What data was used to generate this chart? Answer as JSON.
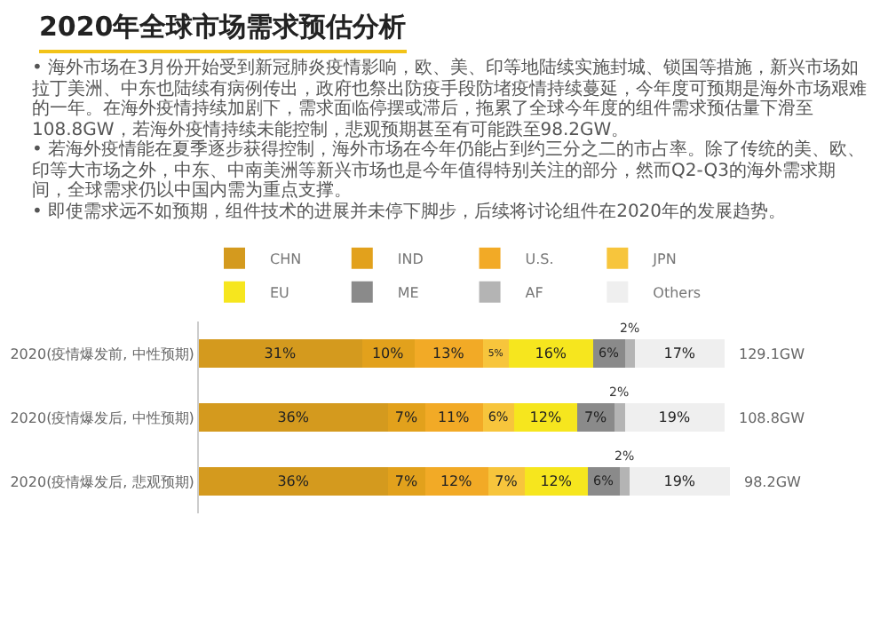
{
  "chart_data": {
    "type": "bar",
    "orientation": "horizontal",
    "stacked": true,
    "title": "2020年全球市场需求预估分析",
    "annotations": [
      "• 海外市场在3月份开始受到新冠肺炎疫情影响，欧、美、印等地陆续实施封城、锁国等措施，新兴市场如拉丁美洲、中东也陆续有病例传出，政府也祭出防疫手段防堵疫情持续蔓延，今年度可预期是海外市场艰难的一年。在海外疫情持续加剧下，需求面临停摆或滞后，拖累了全球今年度的组件需求预估量下滑至108.8GW，若海外疫情持续未能控制，悲观预期甚至有可能跌至98.2GW。",
      "• 若海外疫情能在夏季逐步获得控制，海外市场在今年仍能占到约三分之二的市占率。除了传统的美、欧、印等大市场之外，中东、中南美洲等新兴市场也是今年值得特别关注的部分，然而Q2-Q3的海外需求期间，全球需求仍以中国内需为重点支撑。",
      "• 即使需求远不如预期，组件技术的进展并未停下脚步，后续将讨论组件在2020年的发展趋势。",
      "129.1GW",
      "108.8GW",
      "98.2GW"
    ],
    "categories": [
      "2020(疫情爆发前, 中性预期)",
      "2020(疫情爆发后, 中性预期)",
      "2020(疫情爆发后, 悲观预期)"
    ],
    "series": [
      {
        "name": "CHN",
        "color": "#d49a1e",
        "values": [
          31,
          36,
          36
        ],
        "value_labels": [
          "31%",
          "36%",
          "36%"
        ]
      },
      {
        "name": "IND",
        "color": "#e2a11c",
        "values": [
          10,
          7,
          7
        ],
        "value_labels": [
          "10%",
          "7%",
          "7%"
        ]
      },
      {
        "name": "U.S.",
        "color": "#f2aa26",
        "values": [
          13,
          11,
          12
        ],
        "value_labels": [
          "13%",
          "11%",
          "12%"
        ]
      },
      {
        "name": "JPN",
        "color": "#f7c53c",
        "values": [
          5,
          6,
          7
        ],
        "value_labels": [
          "5%",
          "6%",
          "7%"
        ]
      },
      {
        "name": "EU",
        "color": "#f6e61e",
        "values": [
          16,
          12,
          12
        ],
        "value_labels": [
          "16%",
          "12%",
          "12%"
        ]
      },
      {
        "name": "ME",
        "color": "#8a8a8a",
        "values": [
          6,
          7,
          6
        ],
        "value_labels": [
          "6%",
          "7%",
          "6%"
        ]
      },
      {
        "name": "AF",
        "color": "#b4b4b4",
        "values": [
          2,
          2,
          2
        ],
        "value_labels": [
          "2%",
          "2%",
          "2%"
        ]
      },
      {
        "name": "Others",
        "color": "#efefef",
        "values": [
          17,
          19,
          19
        ],
        "value_labels": [
          "17%",
          "19%",
          "19%"
        ]
      }
    ],
    "legend": "top"
  }
}
